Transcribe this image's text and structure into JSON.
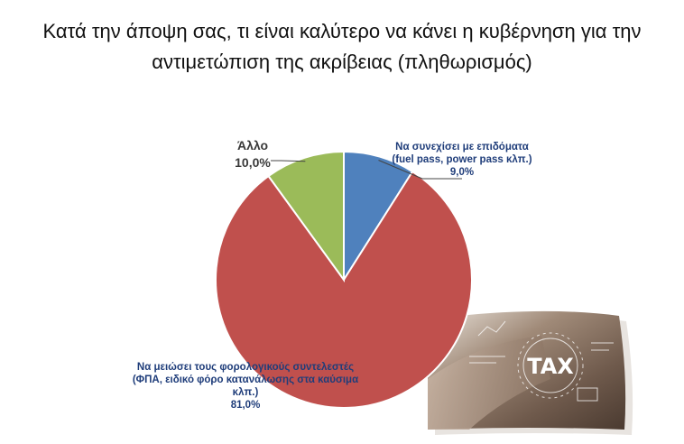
{
  "chart_data": {
    "type": "pie",
    "title_lines": [
      "Κατά την άποψη σας, τι είναι καλύτερο να κάνει η κυβέρνηση για την",
      "αντιμετώπιση της ακρίβειας (πληθωρισμός)"
    ],
    "slices": [
      {
        "label_lines": [
          "Να συνεχίσει με επιδόματα",
          "(fuel pass, power pass κλπ.)"
        ],
        "value": 9.0,
        "value_label": "9,0%",
        "color": "#4f81bd"
      },
      {
        "label_lines": [
          "Να μειώσει τους φορολογικούς συντελεστές",
          "(ΦΠΑ, ειδικό φόρο κατανάλωσης στα καύσιμα",
          "κλπ.)"
        ],
        "value": 81.0,
        "value_label": "81,0%",
        "color": "#c0504d"
      },
      {
        "label_lines": [
          "Άλλο"
        ],
        "value": 10.0,
        "value_label": "10,0%",
        "color": "#9bbb59"
      }
    ],
    "start_angle_deg": 0,
    "direction": "clockwise",
    "legend": "none"
  },
  "decoration": {
    "photo_text": "TAX"
  }
}
